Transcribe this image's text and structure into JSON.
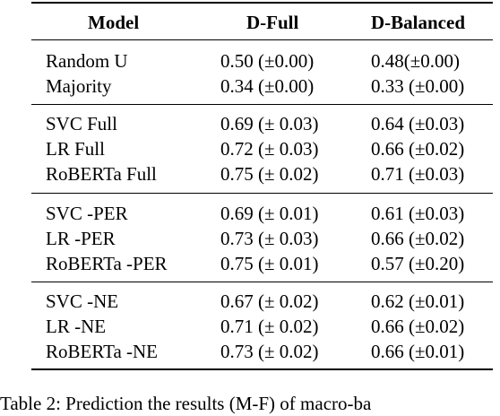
{
  "table": {
    "headers": [
      "Model",
      "D-Full",
      "D-Balanced"
    ],
    "groups": [
      {
        "rows": [
          {
            "model": "Random U",
            "d_full": "0.50 (±0.00)",
            "d_balanced": "0.48(±0.00)"
          },
          {
            "model": "Majority",
            "d_full": "0.34 (±0.00)",
            "d_balanced": "0.33 (±0.00)"
          }
        ]
      },
      {
        "rows": [
          {
            "model": "SVC Full",
            "d_full": "0.69 (± 0.03)",
            "d_balanced": "0.64 (±0.03)"
          },
          {
            "model": "LR Full",
            "d_full": "0.72 (± 0.03)",
            "d_balanced": "0.66 (±0.02)"
          },
          {
            "model": "RoBERTa Full",
            "d_full": "0.75 (± 0.02)",
            "d_balanced": "0.71 (±0.03)"
          }
        ]
      },
      {
        "rows": [
          {
            "model": "SVC -PER",
            "d_full": "0.69 (± 0.01)",
            "d_balanced": "0.61 (±0.03)"
          },
          {
            "model": "LR -PER",
            "d_full": "0.73 (± 0.03)",
            "d_balanced": "0.66 (±0.02)"
          },
          {
            "model": "RoBERTa -PER",
            "d_full": "0.75 (± 0.01)",
            "d_balanced": "0.57 (±0.20)"
          }
        ]
      },
      {
        "rows": [
          {
            "model": "SVC -NE",
            "d_full": "0.67 (± 0.02)",
            "d_balanced": "0.62 (±0.01)"
          },
          {
            "model": "LR -NE",
            "d_full": "0.71 (± 0.02)",
            "d_balanced": "0.66 (±0.02)"
          },
          {
            "model": "RoBERTa -NE",
            "d_full": "0.73 (± 0.02)",
            "d_balanced": "0.66 (±0.01)"
          }
        ]
      }
    ]
  },
  "caption": "Table 2: Prediction the results (M-F) of macro-ba"
}
